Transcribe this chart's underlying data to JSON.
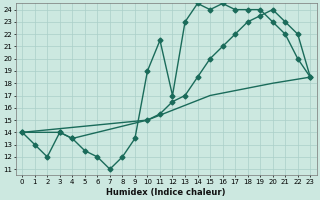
{
  "xlabel": "Humidex (Indice chaleur)",
  "xlim": [
    -0.5,
    23.5
  ],
  "ylim": [
    10.5,
    24.5
  ],
  "yticks": [
    11,
    12,
    13,
    14,
    15,
    16,
    17,
    18,
    19,
    20,
    21,
    22,
    23,
    24
  ],
  "xticks": [
    0,
    1,
    2,
    3,
    4,
    5,
    6,
    7,
    8,
    9,
    10,
    11,
    12,
    13,
    14,
    15,
    16,
    17,
    18,
    19,
    20,
    21,
    22,
    23
  ],
  "bg_color": "#cce8e0",
  "grid_color": "#aacfc8",
  "line_color": "#1a6b5a",
  "line1_x": [
    0,
    1,
    2,
    3,
    4,
    5,
    6,
    7,
    8,
    9,
    10,
    11,
    12,
    13,
    14,
    15,
    16,
    17,
    18,
    19,
    20,
    21,
    22,
    23
  ],
  "line1_y": [
    14,
    13,
    12,
    14,
    13.5,
    12.5,
    12,
    11,
    12,
    13.5,
    19,
    21.5,
    17,
    23,
    24.5,
    24,
    24.5,
    24,
    24,
    24,
    23,
    22,
    20,
    18.5
  ],
  "line2_x": [
    0,
    3,
    4,
    10,
    11,
    12,
    13,
    14,
    15,
    16,
    17,
    18,
    19,
    20,
    21,
    22,
    23
  ],
  "line2_y": [
    14,
    14,
    13.5,
    15,
    15.5,
    16.5,
    17,
    18.5,
    20,
    21,
    22,
    23,
    23.5,
    24,
    23,
    22,
    18.5
  ],
  "line3_x": [
    0,
    10,
    15,
    20,
    23
  ],
  "line3_y": [
    14,
    15,
    17,
    18,
    18.5
  ],
  "markersize": 2.5,
  "linewidth": 1.0
}
